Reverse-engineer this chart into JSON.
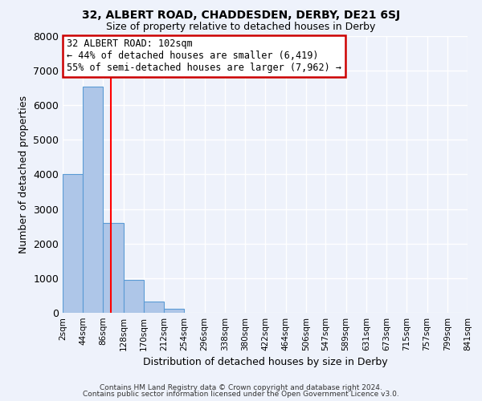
{
  "title1": "32, ALBERT ROAD, CHADDESDEN, DERBY, DE21 6SJ",
  "title2": "Size of property relative to detached houses in Derby",
  "xlabel": "Distribution of detached houses by size in Derby",
  "ylabel": "Number of detached properties",
  "bin_edges": [
    2,
    44,
    86,
    128,
    170,
    212,
    254,
    296,
    338,
    380,
    422,
    464,
    506,
    547,
    589,
    631,
    673,
    715,
    757,
    799,
    841
  ],
  "bar_heights": [
    4000,
    6550,
    2600,
    960,
    320,
    120,
    0,
    0,
    0,
    0,
    0,
    0,
    0,
    0,
    0,
    0,
    0,
    0,
    0,
    0
  ],
  "bar_color": "#aec6e8",
  "bar_edgecolor": "#5b9bd5",
  "tick_labels": [
    "2sqm",
    "44sqm",
    "86sqm",
    "128sqm",
    "170sqm",
    "212sqm",
    "254sqm",
    "296sqm",
    "338sqm",
    "380sqm",
    "422sqm",
    "464sqm",
    "506sqm",
    "547sqm",
    "589sqm",
    "631sqm",
    "673sqm",
    "715sqm",
    "757sqm",
    "799sqm",
    "841sqm"
  ],
  "ylim": [
    0,
    8000
  ],
  "yticks": [
    0,
    1000,
    2000,
    3000,
    4000,
    5000,
    6000,
    7000,
    8000
  ],
  "red_line_x": 102,
  "annotation_title": "32 ALBERT ROAD: 102sqm",
  "annotation_line1": "← 44% of detached houses are smaller (6,419)",
  "annotation_line2": "55% of semi-detached houses are larger (7,962) →",
  "annotation_box_color": "#ffffff",
  "annotation_box_edgecolor": "#cc0000",
  "background_color": "#eef2fb",
  "grid_color": "#ffffff",
  "footer1": "Contains HM Land Registry data © Crown copyright and database right 2024.",
  "footer2": "Contains public sector information licensed under the Open Government Licence v3.0."
}
